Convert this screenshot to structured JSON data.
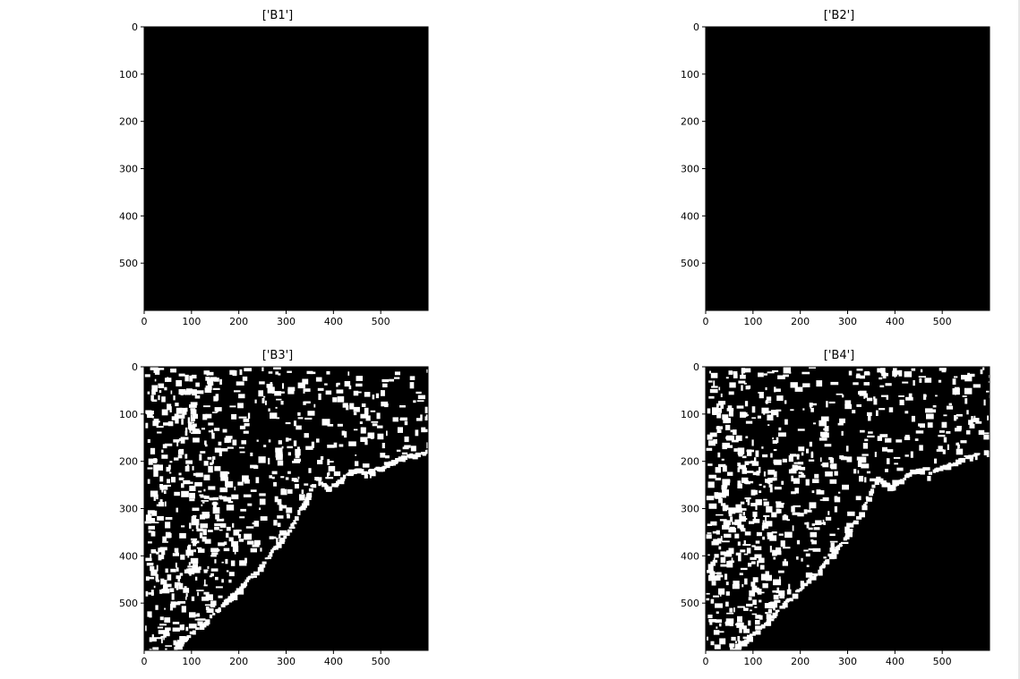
{
  "chart_data": [
    {
      "type": "image",
      "title": "['B1']",
      "xticks": [
        0,
        100,
        200,
        300,
        400,
        500
      ],
      "yticks": [
        0,
        100,
        200,
        300,
        400,
        500
      ],
      "xlim": [
        0,
        600
      ],
      "ylim": [
        600,
        0
      ],
      "image_content": "all-black",
      "colors": {
        "background": "#000000",
        "foreground": "#ffffff"
      }
    },
    {
      "type": "image",
      "title": "['B2']",
      "xticks": [
        0,
        100,
        200,
        300,
        400,
        500
      ],
      "yticks": [
        0,
        100,
        200,
        300,
        400,
        500
      ],
      "xlim": [
        0,
        600
      ],
      "ylim": [
        600,
        0
      ],
      "image_content": "all-black",
      "colors": {
        "background": "#000000",
        "foreground": "#ffffff"
      }
    },
    {
      "type": "image",
      "title": "['B3']",
      "xticks": [
        0,
        100,
        200,
        300,
        400,
        500
      ],
      "yticks": [
        0,
        100,
        200,
        300,
        400,
        500
      ],
      "xlim": [
        0,
        600
      ],
      "ylim": [
        600,
        0
      ],
      "image_content": "binary-coastline-mask",
      "colors": {
        "background": "#000000",
        "foreground": "#ffffff"
      }
    },
    {
      "type": "image",
      "title": "['B4']",
      "xticks": [
        0,
        100,
        200,
        300,
        400,
        500
      ],
      "yticks": [
        0,
        100,
        200,
        300,
        400,
        500
      ],
      "xlim": [
        0,
        600
      ],
      "ylim": [
        600,
        0
      ],
      "image_content": "binary-coastline-mask",
      "colors": {
        "background": "#000000",
        "foreground": "#ffffff"
      }
    }
  ]
}
